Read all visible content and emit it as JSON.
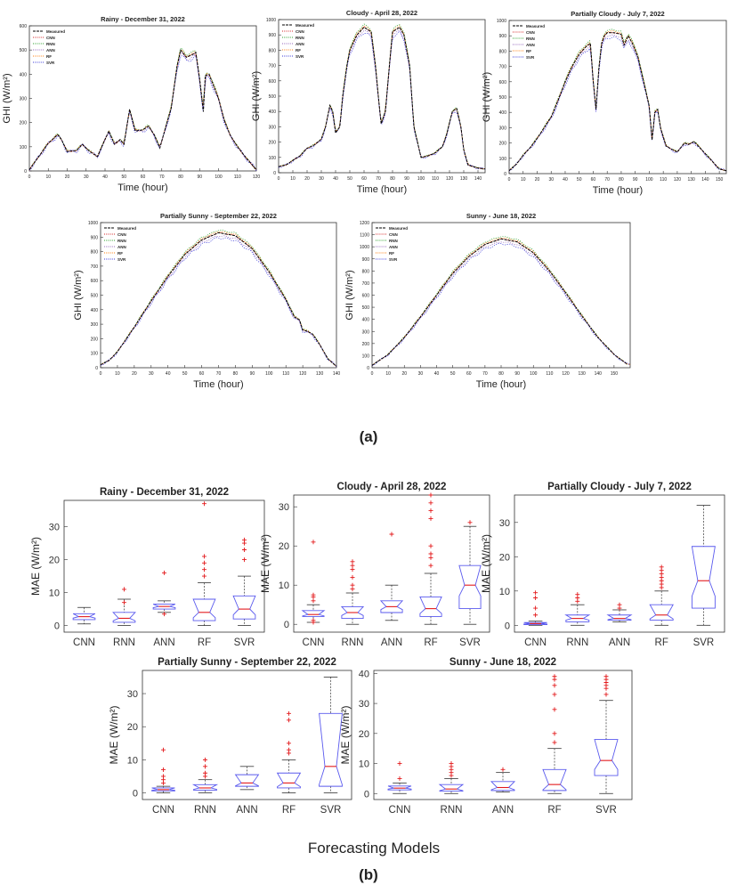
{
  "figure": {
    "label_a": "(a)",
    "label_b": "(b)",
    "xlabel_b": "Forecasting Models"
  },
  "colors": {
    "measured": "#000000",
    "cnn": "#d62728",
    "rnn": "#2ca02c",
    "ann": "#9467bd",
    "rf": "#ff7f0e",
    "svr": "#3b3bd9",
    "box": "#5a5aee",
    "median": "#e31a1c",
    "outlier": "#e31a1c"
  },
  "chart_data": [
    {
      "type": "line",
      "title": "Rainy - December 31, 2022",
      "xlabel": "Time (hour)",
      "ylabel": "GHI (W/m²)",
      "xlim": [
        0,
        120
      ],
      "ylim": [
        0,
        600
      ],
      "xticks": [
        0,
        10,
        20,
        30,
        40,
        50,
        60,
        70,
        80,
        90,
        100,
        110,
        120
      ],
      "yticks": [
        0,
        100,
        200,
        300,
        400,
        500,
        600
      ],
      "legend": [
        "Measured",
        "CNN",
        "RNN",
        "ANN",
        "RF",
        "SVR"
      ],
      "legend_position": "top-left",
      "measured": [
        [
          0,
          5
        ],
        [
          5,
          60
        ],
        [
          10,
          115
        ],
        [
          15,
          150
        ],
        [
          17,
          130
        ],
        [
          20,
          80
        ],
        [
          25,
          85
        ],
        [
          28,
          110
        ],
        [
          32,
          80
        ],
        [
          36,
          60
        ],
        [
          40,
          130
        ],
        [
          42,
          165
        ],
        [
          45,
          110
        ],
        [
          48,
          130
        ],
        [
          50,
          110
        ],
        [
          53,
          255
        ],
        [
          56,
          165
        ],
        [
          60,
          170
        ],
        [
          63,
          185
        ],
        [
          66,
          150
        ],
        [
          69,
          95
        ],
        [
          72,
          180
        ],
        [
          75,
          260
        ],
        [
          78,
          430
        ],
        [
          80,
          500
        ],
        [
          83,
          470
        ],
        [
          86,
          480
        ],
        [
          88,
          490
        ],
        [
          90,
          380
        ],
        [
          92,
          245
        ],
        [
          93,
          395
        ],
        [
          95,
          400
        ],
        [
          97,
          360
        ],
        [
          100,
          300
        ],
        [
          103,
          210
        ],
        [
          106,
          150
        ],
        [
          110,
          100
        ],
        [
          115,
          50
        ],
        [
          120,
          5
        ]
      ]
    },
    {
      "type": "line",
      "title": "Cloudy - April 28, 2022",
      "xlabel": "Time (hour)",
      "ylabel": "GHI (W/m²)",
      "xlim": [
        0,
        145
      ],
      "ylim": [
        0,
        1000
      ],
      "xticks": [
        0,
        10,
        20,
        30,
        40,
        50,
        60,
        70,
        80,
        90,
        100,
        110,
        120,
        130,
        140
      ],
      "yticks": [
        0,
        100,
        200,
        300,
        400,
        500,
        600,
        700,
        800,
        900,
        1000
      ],
      "legend": [
        "Measured",
        "CNN",
        "RNN",
        "ANN",
        "RF",
        "SVR"
      ],
      "legend_position": "top-left",
      "measured": [
        [
          0,
          40
        ],
        [
          5,
          50
        ],
        [
          10,
          80
        ],
        [
          15,
          110
        ],
        [
          20,
          160
        ],
        [
          25,
          180
        ],
        [
          30,
          220
        ],
        [
          33,
          300
        ],
        [
          36,
          440
        ],
        [
          38,
          400
        ],
        [
          40,
          260
        ],
        [
          43,
          300
        ],
        [
          45,
          500
        ],
        [
          48,
          700
        ],
        [
          50,
          800
        ],
        [
          55,
          900
        ],
        [
          60,
          950
        ],
        [
          65,
          920
        ],
        [
          68,
          700
        ],
        [
          70,
          500
        ],
        [
          72,
          320
        ],
        [
          75,
          400
        ],
        [
          78,
          720
        ],
        [
          80,
          920
        ],
        [
          85,
          950
        ],
        [
          88,
          900
        ],
        [
          92,
          700
        ],
        [
          95,
          300
        ],
        [
          100,
          100
        ],
        [
          105,
          110
        ],
        [
          110,
          130
        ],
        [
          115,
          170
        ],
        [
          118,
          250
        ],
        [
          122,
          400
        ],
        [
          125,
          420
        ],
        [
          128,
          300
        ],
        [
          130,
          150
        ],
        [
          133,
          50
        ],
        [
          137,
          40
        ],
        [
          140,
          30
        ],
        [
          145,
          25
        ]
      ]
    },
    {
      "type": "line",
      "title": "Partially Cloudy - July 7, 2022",
      "xlabel": "Time (hour)",
      "ylabel": "GHI (W/m²)",
      "xlim": [
        0,
        155
      ],
      "ylim": [
        0,
        1000
      ],
      "xticks": [
        0,
        10,
        20,
        30,
        40,
        50,
        60,
        70,
        80,
        90,
        100,
        110,
        120,
        130,
        140,
        150
      ],
      "yticks": [
        0,
        100,
        200,
        300,
        400,
        500,
        600,
        700,
        800,
        900,
        1000
      ],
      "legend": [
        "Measured",
        "CNN",
        "RNN",
        "ANN",
        "RF",
        "SVR"
      ],
      "legend_position": "top-left",
      "measured": [
        [
          0,
          20
        ],
        [
          5,
          60
        ],
        [
          10,
          120
        ],
        [
          15,
          170
        ],
        [
          20,
          230
        ],
        [
          25,
          300
        ],
        [
          30,
          370
        ],
        [
          35,
          480
        ],
        [
          40,
          600
        ],
        [
          45,
          700
        ],
        [
          50,
          780
        ],
        [
          55,
          830
        ],
        [
          58,
          850
        ],
        [
          60,
          600
        ],
        [
          62,
          420
        ],
        [
          64,
          680
        ],
        [
          66,
          850
        ],
        [
          68,
          900
        ],
        [
          70,
          920
        ],
        [
          75,
          920
        ],
        [
          80,
          910
        ],
        [
          82,
          840
        ],
        [
          85,
          900
        ],
        [
          88,
          850
        ],
        [
          92,
          760
        ],
        [
          96,
          600
        ],
        [
          100,
          440
        ],
        [
          102,
          220
        ],
        [
          104,
          400
        ],
        [
          106,
          420
        ],
        [
          108,
          300
        ],
        [
          112,
          180
        ],
        [
          116,
          160
        ],
        [
          120,
          140
        ],
        [
          125,
          200
        ],
        [
          128,
          190
        ],
        [
          132,
          210
        ],
        [
          136,
          170
        ],
        [
          140,
          130
        ],
        [
          145,
          80
        ],
        [
          150,
          30
        ],
        [
          155,
          20
        ]
      ]
    },
    {
      "type": "line",
      "title": "Partially Sunny - September 22, 2022",
      "xlabel": "Time (hour)",
      "ylabel": "GHI (W/m²)",
      "xlim": [
        0,
        140
      ],
      "ylim": [
        0,
        1000
      ],
      "xticks": [
        0,
        10,
        20,
        30,
        40,
        50,
        60,
        70,
        80,
        90,
        100,
        110,
        120,
        130,
        140
      ],
      "yticks": [
        0,
        100,
        200,
        300,
        400,
        500,
        600,
        700,
        800,
        900,
        1000
      ],
      "legend": [
        "Measured",
        "CNN",
        "RNN",
        "ANN",
        "RF",
        "SVR"
      ],
      "legend_position": "top-left",
      "measured": [
        [
          0,
          20
        ],
        [
          5,
          50
        ],
        [
          10,
          110
        ],
        [
          20,
          280
        ],
        [
          30,
          460
        ],
        [
          40,
          630
        ],
        [
          50,
          780
        ],
        [
          60,
          880
        ],
        [
          70,
          930
        ],
        [
          80,
          910
        ],
        [
          90,
          820
        ],
        [
          100,
          660
        ],
        [
          110,
          470
        ],
        [
          115,
          350
        ],
        [
          118,
          330
        ],
        [
          120,
          260
        ],
        [
          123,
          250
        ],
        [
          126,
          230
        ],
        [
          130,
          160
        ],
        [
          135,
          60
        ],
        [
          140,
          10
        ]
      ]
    },
    {
      "type": "line",
      "title": "Sunny - June 18, 2022",
      "xlabel": "Time (hour)",
      "ylabel": "GHI (W/m²)",
      "xlim": [
        0,
        160
      ],
      "ylim": [
        0,
        1200
      ],
      "xticks": [
        0,
        10,
        20,
        30,
        40,
        50,
        60,
        70,
        80,
        90,
        100,
        110,
        120,
        130,
        140,
        150
      ],
      "yticks": [
        0,
        100,
        200,
        300,
        400,
        500,
        600,
        700,
        800,
        900,
        1000,
        1100,
        1200
      ],
      "legend": [
        "Measured",
        "CNN",
        "RNN",
        "ANN",
        "RF",
        "SVR"
      ],
      "legend_position": "top-left",
      "measured": [
        [
          0,
          20
        ],
        [
          10,
          110
        ],
        [
          20,
          250
        ],
        [
          30,
          420
        ],
        [
          40,
          600
        ],
        [
          50,
          780
        ],
        [
          60,
          920
        ],
        [
          70,
          1020
        ],
        [
          80,
          1065
        ],
        [
          90,
          1040
        ],
        [
          100,
          950
        ],
        [
          110,
          800
        ],
        [
          120,
          620
        ],
        [
          130,
          430
        ],
        [
          140,
          250
        ],
        [
          150,
          110
        ],
        [
          158,
          30
        ]
      ]
    },
    {
      "type": "box",
      "title": "Rainy - December 31, 2022",
      "ylabel": "MAE (W/m²)",
      "ylim": [
        -2,
        38
      ],
      "yticks": [
        0,
        10,
        20,
        30
      ],
      "categories": [
        "CNN",
        "RNN",
        "ANN",
        "RF",
        "SVR"
      ],
      "boxes": [
        {
          "min": 0.5,
          "q1": 1.8,
          "median": 2.7,
          "q3": 3.6,
          "max": 5.5,
          "outliers": []
        },
        {
          "min": 0,
          "q1": 1,
          "median": 2.2,
          "q3": 4,
          "max": 8,
          "outliers": [
            11,
            7
          ]
        },
        {
          "min": 4,
          "q1": 5,
          "median": 5.8,
          "q3": 6.5,
          "max": 7.5,
          "outliers": [
            16,
            3.5
          ]
        },
        {
          "min": 0,
          "q1": 1.5,
          "median": 4,
          "q3": 8,
          "max": 13,
          "outliers": [
            15,
            17,
            19,
            21,
            37
          ]
        },
        {
          "min": 0,
          "q1": 2,
          "median": 5,
          "q3": 9,
          "max": 15,
          "outliers": [
            20,
            23,
            25,
            26
          ]
        }
      ]
    },
    {
      "type": "box",
      "title": "Cloudy - April 28, 2022",
      "ylabel": "MAE (W/m²)",
      "ylim": [
        -2,
        33
      ],
      "yticks": [
        0,
        10,
        20,
        30
      ],
      "categories": [
        "CNN",
        "RNN",
        "ANN",
        "RF",
        "SVR"
      ],
      "boxes": [
        {
          "min": 0.5,
          "q1": 2,
          "median": 2.5,
          "q3": 3.5,
          "max": 5,
          "outliers": [
            6,
            7,
            7.5,
            1,
            0.5,
            21
          ]
        },
        {
          "min": 0,
          "q1": 1.5,
          "median": 3,
          "q3": 4.5,
          "max": 8,
          "outliers": [
            9,
            10,
            12,
            14,
            15,
            16
          ]
        },
        {
          "min": 1,
          "q1": 3,
          "median": 4.5,
          "q3": 6,
          "max": 10,
          "outliers": [
            23
          ]
        },
        {
          "min": 0,
          "q1": 2,
          "median": 4,
          "q3": 7,
          "max": 13,
          "outliers": [
            15,
            17,
            18,
            20,
            27,
            29,
            31,
            33
          ]
        },
        {
          "min": 0,
          "q1": 4,
          "median": 10,
          "q3": 15,
          "max": 25,
          "outliers": [
            26
          ]
        }
      ]
    },
    {
      "type": "box",
      "title": "Partially Cloudy - July 7, 2022",
      "ylabel": "MAE (W/m²)",
      "ylim": [
        -2,
        38
      ],
      "yticks": [
        0,
        10,
        20,
        30
      ],
      "categories": [
        "CNN",
        "RNN",
        "ANN",
        "RF",
        "SVR"
      ],
      "boxes": [
        {
          "min": 0,
          "q1": 0.2,
          "median": 0.5,
          "q3": 0.8,
          "max": 1.2,
          "outliers": [
            3,
            5,
            8,
            9.5
          ]
        },
        {
          "min": 0,
          "q1": 1,
          "median": 2,
          "q3": 3,
          "max": 6,
          "outliers": [
            7,
            8,
            9
          ]
        },
        {
          "min": 1,
          "q1": 1.5,
          "median": 2,
          "q3": 3,
          "max": 4.5,
          "outliers": [
            5,
            6
          ]
        },
        {
          "min": 0,
          "q1": 1.5,
          "median": 3,
          "q3": 6,
          "max": 10,
          "outliers": [
            11,
            12,
            13,
            14,
            15,
            16,
            17
          ]
        },
        {
          "min": 0,
          "q1": 5,
          "median": 13,
          "q3": 23,
          "max": 35,
          "outliers": []
        }
      ]
    },
    {
      "type": "box",
      "title": "Partially Sunny - September 22, 2022",
      "ylabel": "MAE (W/m²)",
      "ylim": [
        -2,
        37
      ],
      "yticks": [
        0,
        10,
        20,
        30
      ],
      "categories": [
        "CNN",
        "RNN",
        "ANN",
        "RF",
        "SVR"
      ],
      "boxes": [
        {
          "min": 0,
          "q1": 0.6,
          "median": 1,
          "q3": 1.5,
          "max": 2,
          "outliers": [
            3,
            4,
            5,
            7,
            13
          ]
        },
        {
          "min": 0,
          "q1": 0.8,
          "median": 1.5,
          "q3": 2.5,
          "max": 4,
          "outliers": [
            5,
            6,
            8,
            10
          ]
        },
        {
          "min": 1,
          "q1": 2,
          "median": 3,
          "q3": 5.5,
          "max": 8,
          "outliers": []
        },
        {
          "min": 0,
          "q1": 1.5,
          "median": 3,
          "q3": 6,
          "max": 10,
          "outliers": [
            12,
            13,
            15,
            22,
            24
          ]
        },
        {
          "min": 0,
          "q1": 2,
          "median": 8,
          "q3": 24,
          "max": 35,
          "outliers": []
        }
      ]
    },
    {
      "type": "box",
      "title": "Sunny - June 18, 2022",
      "ylabel": "MAE (W/m²)",
      "ylim": [
        -2,
        41
      ],
      "yticks": [
        0,
        10,
        20,
        30,
        40
      ],
      "categories": [
        "CNN",
        "RNN",
        "ANN",
        "RF",
        "SVR"
      ],
      "boxes": [
        {
          "min": 0,
          "q1": 1.2,
          "median": 1.8,
          "q3": 2.5,
          "max": 3.5,
          "outliers": [
            5,
            10
          ]
        },
        {
          "min": 0,
          "q1": 0.8,
          "median": 1.5,
          "q3": 3,
          "max": 5,
          "outliers": [
            6,
            7,
            8,
            9,
            10
          ]
        },
        {
          "min": 0.5,
          "q1": 1,
          "median": 2,
          "q3": 4,
          "max": 7,
          "outliers": [
            8
          ]
        },
        {
          "min": 0,
          "q1": 1,
          "median": 3,
          "q3": 8,
          "max": 15,
          "outliers": [
            17,
            20,
            28,
            33,
            36,
            38,
            39
          ]
        },
        {
          "min": 0,
          "q1": 6,
          "median": 11,
          "q3": 18,
          "max": 31,
          "outliers": [
            33,
            35,
            36,
            37,
            38,
            39
          ]
        }
      ]
    }
  ]
}
